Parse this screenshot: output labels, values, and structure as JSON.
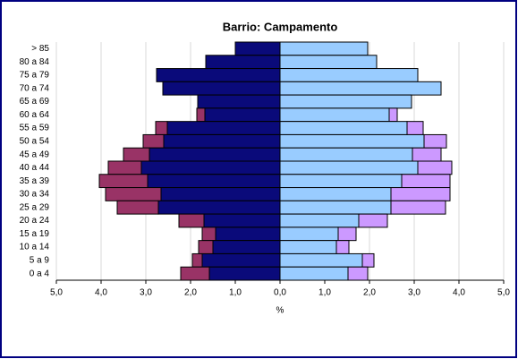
{
  "chart_data": {
    "type": "bar",
    "orientation": "horizontal",
    "stacked": true,
    "title": "Barrio: Campamento",
    "xlabel": "%",
    "categories": [
      "> 85",
      "80 a 84",
      "75 a 79",
      "70 a 74",
      "65 a 69",
      "60 a 64",
      "55 a 59",
      "50 a 54",
      "45 a 49",
      "40 a 44",
      "35 a 39",
      "30 a 34",
      "25 a 29",
      "20 a 24",
      "15 a 19",
      "10 a 14",
      "5 a 9",
      "0 a 4"
    ],
    "series": [
      {
        "color": "#0a0a7a",
        "values": [
          -1.0,
          -1.66,
          -2.76,
          -2.62,
          -1.84,
          -1.68,
          -2.52,
          -2.6,
          -2.92,
          -3.1,
          -2.96,
          -2.66,
          -2.72,
          -1.7,
          -1.44,
          -1.5,
          -1.74,
          -1.58
        ]
      },
      {
        "color": "#993366",
        "values": [
          0,
          0,
          0,
          0,
          0,
          -0.18,
          -0.26,
          -0.46,
          -0.58,
          -0.74,
          -1.08,
          -1.24,
          -0.92,
          -0.56,
          -0.3,
          -0.32,
          -0.22,
          -0.64
        ]
      },
      {
        "color": "#99ccff",
        "values": [
          1.96,
          2.16,
          3.08,
          3.6,
          2.94,
          2.44,
          2.84,
          3.22,
          2.96,
          3.08,
          2.72,
          2.48,
          2.48,
          1.76,
          1.3,
          1.26,
          1.84,
          1.52
        ]
      },
      {
        "color": "#cc99ff",
        "values": [
          0,
          0,
          0,
          0,
          0,
          0.18,
          0.36,
          0.5,
          0.64,
          0.76,
          1.08,
          1.32,
          1.22,
          0.64,
          0.4,
          0.28,
          0.26,
          0.44
        ]
      }
    ],
    "xlim": [
      -5,
      5
    ],
    "xticks": [
      {
        "value": -5,
        "label": "5,0"
      },
      {
        "value": -4,
        "label": "4,0"
      },
      {
        "value": -3,
        "label": "3,0"
      },
      {
        "value": -2,
        "label": "2,0"
      },
      {
        "value": -1,
        "label": "1,0"
      },
      {
        "value": 0,
        "label": "0,0"
      },
      {
        "value": 1,
        "label": "1,0"
      },
      {
        "value": 2,
        "label": "2,0"
      },
      {
        "value": 3,
        "label": "3,0"
      },
      {
        "value": 4,
        "label": "4,0"
      },
      {
        "value": 5,
        "label": "5,0"
      }
    ],
    "grid": true
  }
}
